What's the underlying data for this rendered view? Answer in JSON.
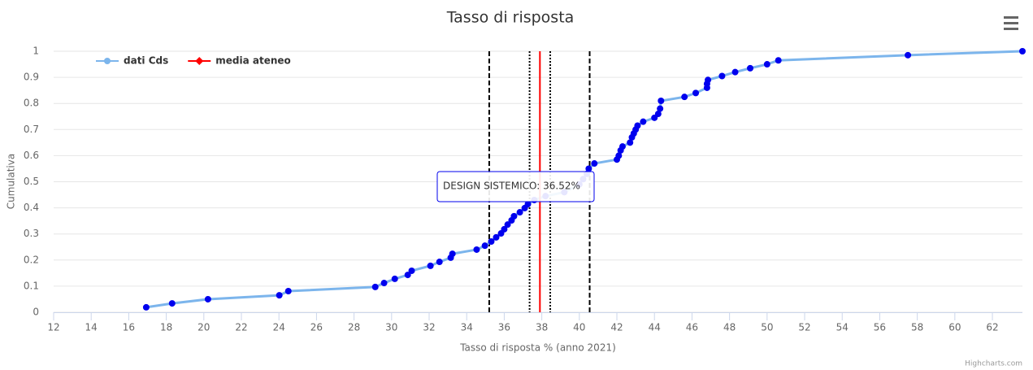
{
  "chart_data": {
    "type": "line",
    "title": "Tasso di risposta",
    "x_label": "Tasso di risposta % (anno 2021)",
    "y_label": "Cumulativa",
    "xlim": [
      12,
      63.6
    ],
    "ylim": [
      0,
      1
    ],
    "xticks": [
      12,
      14,
      16,
      18,
      20,
      22,
      24,
      26,
      28,
      30,
      32,
      34,
      36,
      38,
      40,
      42,
      44,
      46,
      48,
      50,
      52,
      54,
      56,
      58,
      60,
      62
    ],
    "yticks": [
      0,
      0.1,
      0.2,
      0.3,
      0.4,
      0.5,
      0.6,
      0.7,
      0.8,
      0.9,
      1
    ],
    "grid": true,
    "legend": "top-left",
    "series": [
      {
        "name": "dati Cds",
        "color": "#7cb5ec",
        "marker_color": "#0000ee",
        "x": [
          16.93,
          18.31,
          20.22,
          24.02,
          24.5,
          29.13,
          29.6,
          30.17,
          30.86,
          31.07,
          32.07,
          32.55,
          33.15,
          33.24,
          34.53,
          34.97,
          35.31,
          35.57,
          35.83,
          36.0,
          36.18,
          36.39,
          36.52,
          36.83,
          37.09,
          37.26,
          37.6,
          38.2,
          39.2,
          40.0,
          40.2,
          40.4,
          40.5,
          40.8,
          42.0,
          42.1,
          42.2,
          42.3,
          42.7,
          42.8,
          42.9,
          43.0,
          43.1,
          43.4,
          44.0,
          44.2,
          44.3,
          44.35,
          45.6,
          46.2,
          46.8,
          46.8,
          46.85,
          47.6,
          48.3,
          49.1,
          50.0,
          50.6,
          57.5,
          63.6
        ],
        "values": [
          0.019,
          0.034,
          0.05,
          0.065,
          0.081,
          0.097,
          0.112,
          0.128,
          0.143,
          0.159,
          0.178,
          0.193,
          0.209,
          0.224,
          0.24,
          0.255,
          0.271,
          0.287,
          0.302,
          0.318,
          0.336,
          0.352,
          0.368,
          0.383,
          0.399,
          0.414,
          0.43,
          0.445,
          0.46,
          0.49,
          0.51,
          0.53,
          0.55,
          0.57,
          0.585,
          0.6,
          0.62,
          0.635,
          0.65,
          0.67,
          0.685,
          0.7,
          0.715,
          0.73,
          0.745,
          0.76,
          0.78,
          0.81,
          0.825,
          0.84,
          0.86,
          0.875,
          0.89,
          0.905,
          0.92,
          0.935,
          0.95,
          0.965,
          0.985,
          1.0
        ]
      },
      {
        "name": "media ateneo",
        "color": "#ff0000",
        "x": [
          37.9
        ]
      }
    ],
    "plot_lines": [
      {
        "value": 35.2,
        "dash": "dashed"
      },
      {
        "value": 37.35,
        "dash": "dotted"
      },
      {
        "value": 38.45,
        "dash": "dotted"
      },
      {
        "value": 40.55,
        "dash": "dashed"
      }
    ],
    "tooltip": "DESIGN SISTEMICO: 36.52%",
    "credits": "Highcharts.com"
  }
}
